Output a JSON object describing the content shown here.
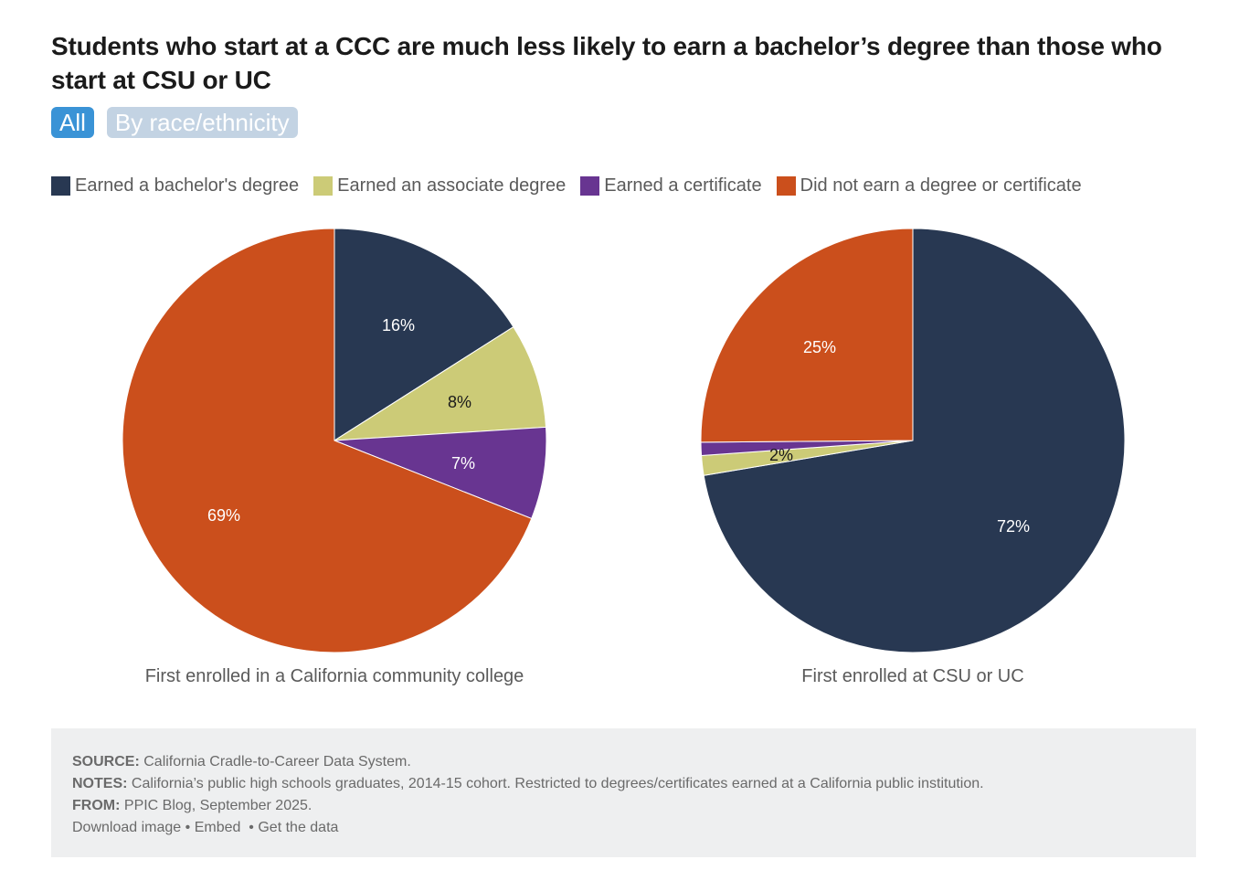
{
  "title": "Students who start at a CCC are much less likely to earn a bachelor’s degree than those who start at CSU or UC",
  "tabs": [
    {
      "label": "All",
      "active": true
    },
    {
      "label": "By race/ethnicity",
      "active": false
    }
  ],
  "legend": [
    {
      "label": "Earned a bachelor's degree",
      "color": "#283852"
    },
    {
      "label": "Earned an associate degree",
      "color": "#cccb77"
    },
    {
      "label": "Earned a certificate",
      "color": "#683591"
    },
    {
      "label": "Did not earn a degree or certificate",
      "color": "#cb4f1c"
    }
  ],
  "chart_data": [
    {
      "type": "pie",
      "title": "First enrolled in a California community college",
      "labels": [
        "Earned a bachelor's degree",
        "Earned an associate degree",
        "Earned a certificate",
        "Did not earn a degree or certificate"
      ],
      "values": [
        16,
        8,
        7,
        69
      ],
      "data_labels": [
        "16%",
        "8%",
        "7%",
        "69%"
      ],
      "label_colors": [
        "#ffffff",
        "#1a1a1a",
        "#ffffff",
        "#ffffff"
      ]
    },
    {
      "type": "pie",
      "title": "First enrolled at CSU or UC",
      "labels": [
        "Earned a bachelor's degree",
        "Earned an associate degree",
        "Earned a certificate",
        "Did not earn a degree or certificate"
      ],
      "values": [
        72,
        1.5,
        1,
        25
      ],
      "data_labels": [
        "72%",
        "2%",
        "",
        "25%"
      ],
      "label_colors": [
        "#ffffff",
        "#1a1a1a",
        "#ffffff",
        "#ffffff"
      ]
    }
  ],
  "footer": {
    "source_label": "SOURCE:",
    "source_text": "California Cradle-to-Career Data System.",
    "notes_label": "NOTES:",
    "notes_text": "California’s public high schools graduates, 2014-15 cohort. Restricted to degrees/certificates earned at a California public institution.",
    "from_label": "FROM:",
    "from_text": "PPIC Blog, September 2025.",
    "download_label": "Download image",
    "sep1": "•",
    "embed_label": "Embed",
    "sep2": "•",
    "data_label": "Get the data"
  }
}
